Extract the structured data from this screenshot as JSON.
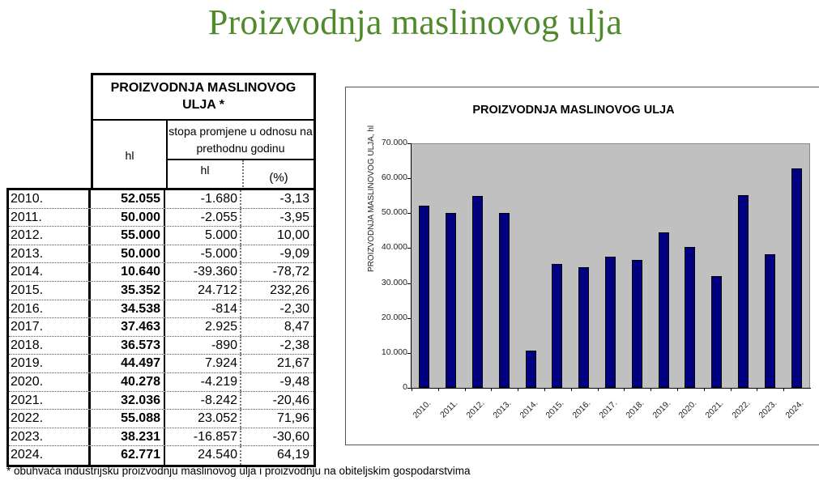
{
  "page": {
    "title": "Proizvodnja maslinovog ulja",
    "title_color": "#4f8a2d",
    "footnote": "* obuhvaća industrijsku proizvodnju maslinovog ulja i proizvodnju na obiteljskim gospodarstvima"
  },
  "table": {
    "header_title": "PROIZVODNJA MASLINOVOG ULJA *",
    "header_hl": "hl",
    "header_rate": "stopa promjene u odnosu na prethodnu godinu",
    "header_rate_hl": "hl",
    "header_rate_pct": "(%)",
    "rows": [
      {
        "year": "2010.",
        "hl": "52.055",
        "change_hl": "-1.680",
        "change_pct": "-3,13"
      },
      {
        "year": "2011.",
        "hl": "50.000",
        "change_hl": "-2.055",
        "change_pct": "-3,95"
      },
      {
        "year": "2012.",
        "hl": "55.000",
        "change_hl": "5.000",
        "change_pct": "10,00"
      },
      {
        "year": "2013.",
        "hl": "50.000",
        "change_hl": "-5.000",
        "change_pct": "-9,09"
      },
      {
        "year": "2014.",
        "hl": "10.640",
        "change_hl": "-39.360",
        "change_pct": "-78,72"
      },
      {
        "year": "2015.",
        "hl": "35.352",
        "change_hl": "24.712",
        "change_pct": "232,26"
      },
      {
        "year": "2016.",
        "hl": "34.538",
        "change_hl": "-814",
        "change_pct": "-2,30"
      },
      {
        "year": "2017.",
        "hl": "37.463",
        "change_hl": "2.925",
        "change_pct": "8,47"
      },
      {
        "year": "2018.",
        "hl": "36.573",
        "change_hl": "-890",
        "change_pct": "-2,38"
      },
      {
        "year": "2019.",
        "hl": "44.497",
        "change_hl": "7.924",
        "change_pct": "21,67"
      },
      {
        "year": "2020.",
        "hl": "40.278",
        "change_hl": "-4.219",
        "change_pct": "-9,48"
      },
      {
        "year": "2021.",
        "hl": "32.036",
        "change_hl": "-8.242",
        "change_pct": "-20,46"
      },
      {
        "year": "2022.",
        "hl": "55.088",
        "change_hl": "23.052",
        "change_pct": "71,96"
      },
      {
        "year": "2023.",
        "hl": "38.231",
        "change_hl": "-16.857",
        "change_pct": "-30,60"
      },
      {
        "year": "2024.",
        "hl": "62.771",
        "change_hl": "24.540",
        "change_pct": "64,19"
      }
    ]
  },
  "chart_data": {
    "type": "bar",
    "title": "PROIZVODNJA MASLINOVOG ULJA",
    "xlabel": "",
    "ylabel": "PROIZVODNJA MASLINOVOG ULJA, hl",
    "categories": [
      "2010.",
      "2011.",
      "2012.",
      "2013.",
      "2014.",
      "2015.",
      "2016.",
      "2017.",
      "2018.",
      "2019.",
      "2020.",
      "2021.",
      "2022.",
      "2023.",
      "2024."
    ],
    "values": [
      52055,
      50000,
      55000,
      50000,
      10640,
      35352,
      34538,
      37463,
      36573,
      44497,
      40278,
      32036,
      55088,
      38231,
      62771
    ],
    "ylim": [
      0,
      70000
    ],
    "yticks": [
      "0",
      "10.000",
      "20.000",
      "30.000",
      "40.000",
      "50.000",
      "60.000",
      "70.000"
    ],
    "bar_color": "#000080",
    "plot_background": "#c0c0c0",
    "grid": false,
    "legend": "none"
  }
}
